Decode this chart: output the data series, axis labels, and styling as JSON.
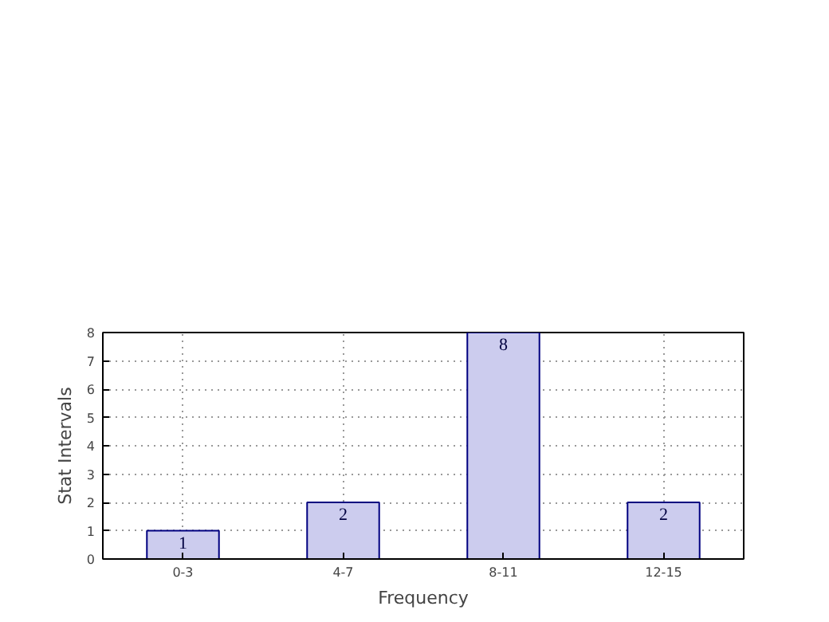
{
  "chart_data": {
    "type": "bar",
    "xlabel": "Frequency",
    "ylabel": "Stat Intervals",
    "categories": [
      "0-3",
      "4-7",
      "8-11",
      "12-15"
    ],
    "values": [
      1,
      2,
      8,
      2
    ],
    "color": "#ccccee",
    "ylim": [
      0,
      8
    ],
    "yticks": [
      0,
      1,
      2,
      3,
      4,
      5,
      6,
      7,
      8
    ],
    "grid": true,
    "data_labels": true
  }
}
